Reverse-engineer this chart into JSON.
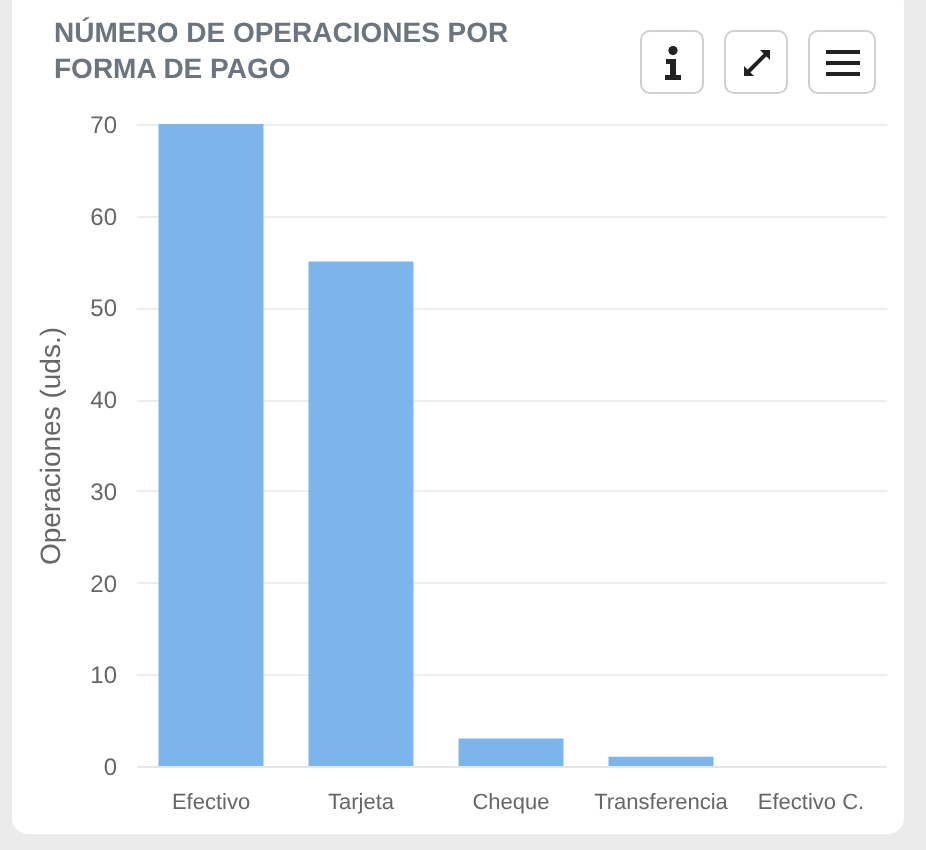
{
  "chart_data": {
    "type": "bar",
    "title": "NÚMERO DE OPERACIONES POR FORMA DE PAGO",
    "ylabel": "Operaciones (uds.)",
    "categories": [
      "Efectivo",
      "Tarjeta",
      "Cheque",
      "Transferencia",
      "Efectivo C."
    ],
    "values": [
      70,
      55,
      3,
      1,
      0
    ],
    "color": "#7cb5ec",
    "ylim": [
      0,
      70
    ],
    "yticks": [
      0,
      10,
      20,
      30,
      40,
      50,
      60,
      70
    ],
    "grid": "y"
  }
}
